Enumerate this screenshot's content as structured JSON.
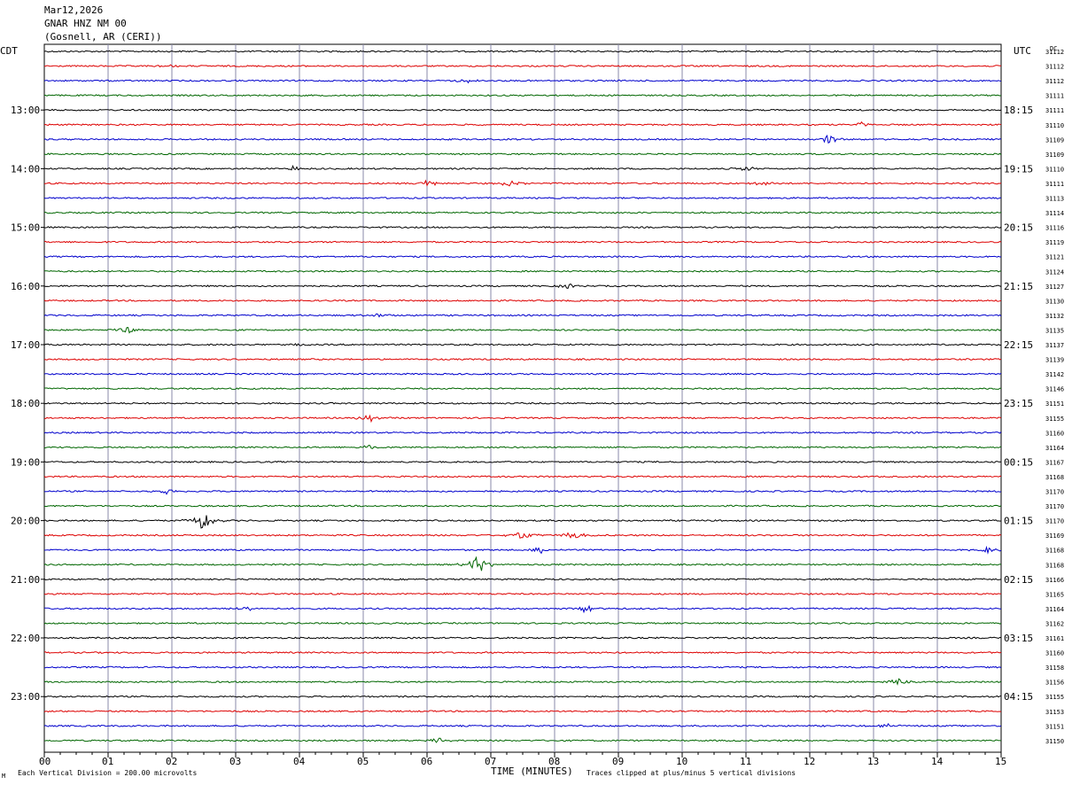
{
  "header": {
    "date": "Mar12,2026",
    "station": "GNAR HNZ NM 00",
    "location": "(Gosnell, AR (CERI))"
  },
  "left_zone": "CDT",
  "right_zone": "UTC",
  "dc_label": "DC",
  "footer": {
    "marker": "M",
    "scale_note": "Each Vertical Division =  200.00 microvolts",
    "clip_note": "Traces clipped at plus/minus 5 vertical divisions"
  },
  "colors": {
    "trace_cycle": [
      "#000000",
      "#dd0000",
      "#0000cc",
      "#006600"
    ],
    "gridline": "#8888aa"
  },
  "chart_data": {
    "type": "line",
    "xlabel": "TIME (MINUTES)",
    "x_ticks": [
      "00",
      "01",
      "02",
      "03",
      "04",
      "05",
      "06",
      "07",
      "08",
      "09",
      "10",
      "11",
      "12",
      "13",
      "14",
      "15"
    ],
    "xlim": [
      0,
      15
    ],
    "left_labels": [
      {
        "row": 4,
        "text": "13:00"
      },
      {
        "row": 8,
        "text": "14:00"
      },
      {
        "row": 12,
        "text": "15:00"
      },
      {
        "row": 16,
        "text": "16:00"
      },
      {
        "row": 20,
        "text": "17:00"
      },
      {
        "row": 24,
        "text": "18:00"
      },
      {
        "row": 28,
        "text": "19:00"
      },
      {
        "row": 32,
        "text": "20:00"
      },
      {
        "row": 36,
        "text": "21:00"
      },
      {
        "row": 40,
        "text": "22:00"
      },
      {
        "row": 44,
        "text": "23:00"
      }
    ],
    "right_labels": [
      {
        "row": 4,
        "text": "18:15"
      },
      {
        "row": 8,
        "text": "19:15"
      },
      {
        "row": 12,
        "text": "20:15"
      },
      {
        "row": 16,
        "text": "21:15"
      },
      {
        "row": 20,
        "text": "22:15"
      },
      {
        "row": 24,
        "text": "23:15"
      },
      {
        "row": 28,
        "text": "00:15"
      },
      {
        "row": 32,
        "text": "01:15"
      },
      {
        "row": 36,
        "text": "02:15"
      },
      {
        "row": 40,
        "text": "03:15"
      },
      {
        "row": 44,
        "text": "04:15"
      }
    ],
    "dc_values": [
      "31112",
      "31112",
      "31112",
      "31111",
      "31111",
      "31110",
      "31109",
      "31109",
      "31110",
      "31111",
      "31113",
      "31114",
      "31116",
      "31119",
      "31121",
      "31124",
      "31127",
      "31130",
      "31132",
      "31135",
      "31137",
      "31139",
      "31142",
      "31146",
      "31151",
      "31155",
      "31160",
      "31164",
      "31167",
      "31168",
      "31170",
      "31170",
      "31170",
      "31169",
      "31168",
      "31168",
      "31166",
      "31165",
      "31164",
      "31162",
      "31161",
      "31160",
      "31158",
      "31156",
      "31155",
      "31153",
      "31151",
      "31150"
    ],
    "events": [
      {
        "row": 1,
        "minute": 1.9,
        "amp": 2
      },
      {
        "row": 2,
        "minute": 6.6,
        "amp": 3
      },
      {
        "row": 5,
        "minute": 12.8,
        "amp": 3
      },
      {
        "row": 6,
        "minute": 12.3,
        "amp": 5
      },
      {
        "row": 8,
        "minute": 3.9,
        "amp": 3
      },
      {
        "row": 8,
        "minute": 11.0,
        "amp": 3
      },
      {
        "row": 9,
        "minute": 6.0,
        "amp": 4
      },
      {
        "row": 9,
        "minute": 7.3,
        "amp": 4
      },
      {
        "row": 9,
        "minute": 11.3,
        "amp": 4
      },
      {
        "row": 16,
        "minute": 8.2,
        "amp": 3
      },
      {
        "row": 18,
        "minute": 5.2,
        "amp": 3
      },
      {
        "row": 19,
        "minute": 1.3,
        "amp": 4
      },
      {
        "row": 20,
        "minute": 4.0,
        "amp": 2
      },
      {
        "row": 25,
        "minute": 5.1,
        "amp": 4
      },
      {
        "row": 27,
        "minute": 5.1,
        "amp": 3
      },
      {
        "row": 30,
        "minute": 1.9,
        "amp": 3
      },
      {
        "row": 32,
        "minute": 2.5,
        "amp": 12
      },
      {
        "row": 33,
        "minute": 7.5,
        "amp": 6
      },
      {
        "row": 33,
        "minute": 8.3,
        "amp": 5
      },
      {
        "row": 34,
        "minute": 7.8,
        "amp": 4
      },
      {
        "row": 34,
        "minute": 14.8,
        "amp": 4
      },
      {
        "row": 35,
        "minute": 6.8,
        "amp": 12
      },
      {
        "row": 38,
        "minute": 8.5,
        "amp": 6
      },
      {
        "row": 38,
        "minute": 3.2,
        "amp": 3
      },
      {
        "row": 43,
        "minute": 13.4,
        "amp": 5
      },
      {
        "row": 46,
        "minute": 13.2,
        "amp": 4
      },
      {
        "row": 47,
        "minute": 6.2,
        "amp": 3
      }
    ]
  }
}
